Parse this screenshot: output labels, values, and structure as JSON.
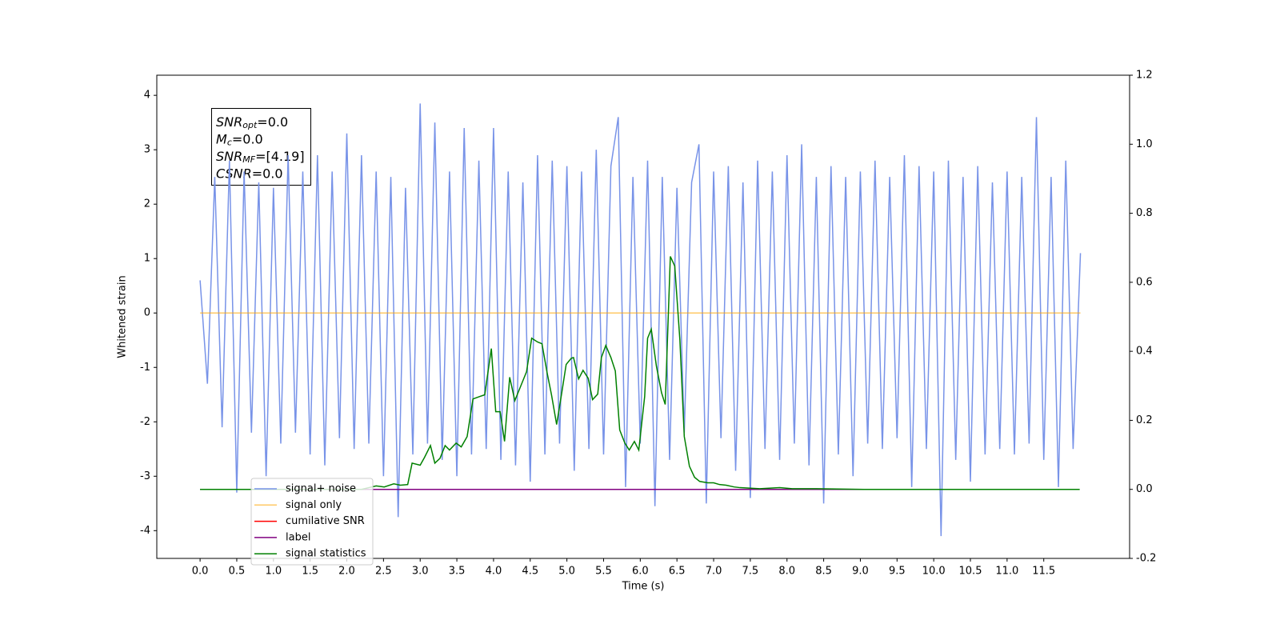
{
  "chart_data": {
    "type": "line",
    "xlabel": "Time (s)",
    "ylabel": "Whitened strain",
    "xlim": [
      -0.59,
      12.67
    ],
    "ylim": [
      -4.51,
      4.37
    ],
    "y2lim": [
      -0.2,
      1.2
    ],
    "xticks": [
      {
        "value": 0,
        "label": "0.0"
      },
      {
        "value": 0.5,
        "label": "0.5"
      },
      {
        "value": 1,
        "label": "1.0"
      },
      {
        "value": 1.5,
        "label": "1.5"
      },
      {
        "value": 2,
        "label": "2.0"
      },
      {
        "value": 2.5,
        "label": "2.5"
      },
      {
        "value": 3,
        "label": "3.0"
      },
      {
        "value": 3.5,
        "label": "3.5"
      },
      {
        "value": 4,
        "label": "4.0"
      },
      {
        "value": 4.5,
        "label": "4.5"
      },
      {
        "value": 5,
        "label": "5.0"
      },
      {
        "value": 5.5,
        "label": "5.5"
      },
      {
        "value": 6,
        "label": "6.0"
      },
      {
        "value": 6.5,
        "label": "6.5"
      },
      {
        "value": 7,
        "label": "7.0"
      },
      {
        "value": 7.5,
        "label": "7.5"
      },
      {
        "value": 8,
        "label": "8.0"
      },
      {
        "value": 8.5,
        "label": "8.5"
      },
      {
        "value": 9,
        "label": "9.0"
      },
      {
        "value": 9.5,
        "label": "9.5"
      },
      {
        "value": 10,
        "label": "10.0"
      },
      {
        "value": 10.5,
        "label": "10.5"
      },
      {
        "value": 11,
        "label": "11.0"
      },
      {
        "value": 11.5,
        "label": "11.5"
      }
    ],
    "yticks": [
      -4,
      -3,
      -2,
      -1,
      0,
      1,
      2,
      3,
      4
    ],
    "y2ticks": [
      -0.2,
      {
        "value": 0,
        "label": "0.0"
      },
      0.2,
      0.4,
      0.6,
      0.8,
      {
        "value": 1,
        "label": "1.0"
      },
      1.2
    ],
    "legend": "lower left",
    "annotation": [
      {
        "symbol": "SNR",
        "subscript": "opt",
        "text": "=0.0"
      },
      {
        "symbol": "M",
        "subscript": "c",
        "text": "=0.0"
      },
      {
        "symbol": "SNR",
        "subscript": "MF",
        "text": "=[4.19]"
      },
      {
        "symbol": "CSNR",
        "text": "=0.0"
      }
    ],
    "series": [
      {
        "name": "signal+ noise",
        "color": "#7893e8",
        "x": [
          0,
          0.1,
          0.2,
          0.3,
          0.4,
          0.5,
          0.6,
          0.7,
          0.8,
          0.9,
          1,
          1.1,
          1.2,
          1.3,
          1.4,
          1.5,
          1.6,
          1.7,
          1.8,
          1.9,
          2,
          2.1,
          2.2,
          2.3,
          2.4,
          2.5,
          2.6,
          2.7,
          2.8,
          2.9,
          3,
          3.1,
          3.2,
          3.3,
          3.4,
          3.5,
          3.6,
          3.7,
          3.8,
          3.9,
          4,
          4.1,
          4.2,
          4.3,
          4.4,
          4.5,
          4.6,
          4.7,
          4.8,
          4.9,
          5,
          5.1,
          5.2,
          5.3,
          5.4,
          5.5,
          5.6,
          5.7,
          5.8,
          5.9,
          6,
          6.1,
          6.2,
          6.3,
          6.4,
          6.5,
          6.6,
          6.7,
          6.8,
          6.9,
          7,
          7.1,
          7.2,
          7.3,
          7.4,
          7.5,
          7.6,
          7.7,
          7.8,
          7.9,
          8,
          8.1,
          8.2,
          8.3,
          8.4,
          8.5,
          8.6,
          8.7,
          8.8,
          8.9,
          9,
          9.1,
          9.2,
          9.3,
          9.4,
          9.5,
          9.6,
          9.7,
          9.8,
          9.9,
          10,
          10.1,
          10.2,
          10.3,
          10.4,
          10.5,
          10.6,
          10.7,
          10.8,
          10.9,
          11,
          11.1,
          11.2,
          11.3,
          11.4,
          11.5,
          11.6,
          11.7,
          11.8,
          11.9,
          12
        ],
        "values": [
          0.6,
          -1.3,
          2.5,
          -2.1,
          2.8,
          -3.3,
          2.6,
          -2.2,
          2.4,
          -3.0,
          2.3,
          -2.4,
          2.9,
          -2.2,
          2.6,
          -2.6,
          2.9,
          -2.8,
          2.6,
          -2.3,
          3.3,
          -2.5,
          2.9,
          -2.4,
          2.6,
          -3.0,
          2.5,
          -3.75,
          2.3,
          -2.6,
          3.85,
          -2.4,
          3.5,
          -2.7,
          2.6,
          -3.0,
          3.4,
          -2.6,
          2.8,
          -2.5,
          3.4,
          -2.7,
          2.6,
          -2.8,
          2.4,
          -3.1,
          2.9,
          -2.6,
          2.8,
          -2.4,
          2.7,
          -2.9,
          2.6,
          -2.5,
          3.0,
          -2.6,
          2.7,
          3.6,
          -3.2,
          2.5,
          -2.4,
          2.8,
          -3.55,
          2.5,
          -2.7,
          2.3,
          -2.2,
          2.4,
          3.1,
          -3.5,
          2.6,
          -2.3,
          2.7,
          -2.9,
          2.4,
          -3.4,
          2.8,
          -2.5,
          2.6,
          -2.7,
          2.9,
          -2.4,
          3.1,
          -2.8,
          2.5,
          -3.5,
          2.7,
          -2.6,
          2.5,
          -3.0,
          2.6,
          -2.4,
          2.8,
          -2.5,
          2.5,
          -2.3,
          2.9,
          -3.2,
          2.7,
          -2.5,
          2.6,
          -4.1,
          2.8,
          -2.7,
          2.5,
          -3.1,
          2.7,
          -2.6,
          2.4,
          -2.5,
          2.6,
          -2.6,
          2.5,
          -2.4,
          3.6,
          -2.7,
          2.5,
          -3.2,
          2.8,
          -2.5,
          1.1
        ]
      },
      {
        "name": "signal only",
        "color": "#ffa500",
        "x": [
          0,
          12
        ],
        "values": [
          0,
          0
        ]
      },
      {
        "name": "cumilative SNR",
        "color": "#ff0000",
        "axis": "y2",
        "x": [
          0,
          11.95
        ],
        "values": [
          0,
          0
        ]
      },
      {
        "name": "label",
        "color": "#800080",
        "axis": "y2",
        "x": [
          0,
          11.95
        ],
        "values": [
          0,
          0
        ]
      },
      {
        "name": "signal statistics",
        "color": "#008000",
        "axis": "y2",
        "x": [
          0,
          2.2,
          2.4,
          2.51,
          2.64,
          2.73,
          2.83,
          2.89,
          3.0,
          3.06,
          3.14,
          3.2,
          3.27,
          3.34,
          3.4,
          3.49,
          3.56,
          3.64,
          3.72,
          3.81,
          3.88,
          3.97,
          4.03,
          4.09,
          4.15,
          4.22,
          4.29,
          4.37,
          4.45,
          4.52,
          4.6,
          4.66,
          4.73,
          4.79,
          4.86,
          4.93,
          4.99,
          5.06,
          5.09,
          5.16,
          5.22,
          5.29,
          5.35,
          5.42,
          5.47,
          5.53,
          5.6,
          5.66,
          5.72,
          5.79,
          5.85,
          5.92,
          5.98,
          6.06,
          6.1,
          6.15,
          6.22,
          6.29,
          6.34,
          6.41,
          6.47,
          6.54,
          6.6,
          6.67,
          6.74,
          6.81,
          6.92,
          7.0,
          7.08,
          7.17,
          7.28,
          7.36,
          7.63,
          7.9,
          8.07,
          8.4,
          9.05,
          11.99
        ],
        "values": [
          0,
          0,
          0.01,
          0.007,
          0.016,
          0.012,
          0.014,
          0.076,
          0.07,
          0.093,
          0.127,
          0.076,
          0.09,
          0.127,
          0.114,
          0.134,
          0.123,
          0.153,
          0.262,
          0.269,
          0.274,
          0.408,
          0.225,
          0.225,
          0.139,
          0.325,
          0.257,
          0.299,
          0.341,
          0.438,
          0.427,
          0.422,
          0.338,
          0.274,
          0.188,
          0.28,
          0.362,
          0.38,
          0.382,
          0.32,
          0.345,
          0.322,
          0.26,
          0.276,
          0.382,
          0.417,
          0.382,
          0.343,
          0.172,
          0.134,
          0.114,
          0.139,
          0.114,
          0.269,
          0.438,
          0.464,
          0.357,
          0.28,
          0.246,
          0.675,
          0.647,
          0.433,
          0.153,
          0.067,
          0.035,
          0.023,
          0.019,
          0.019,
          0.014,
          0.012,
          0.007,
          0.005,
          0.002,
          0.005,
          0.002,
          0.002,
          0,
          0
        ]
      }
    ]
  }
}
